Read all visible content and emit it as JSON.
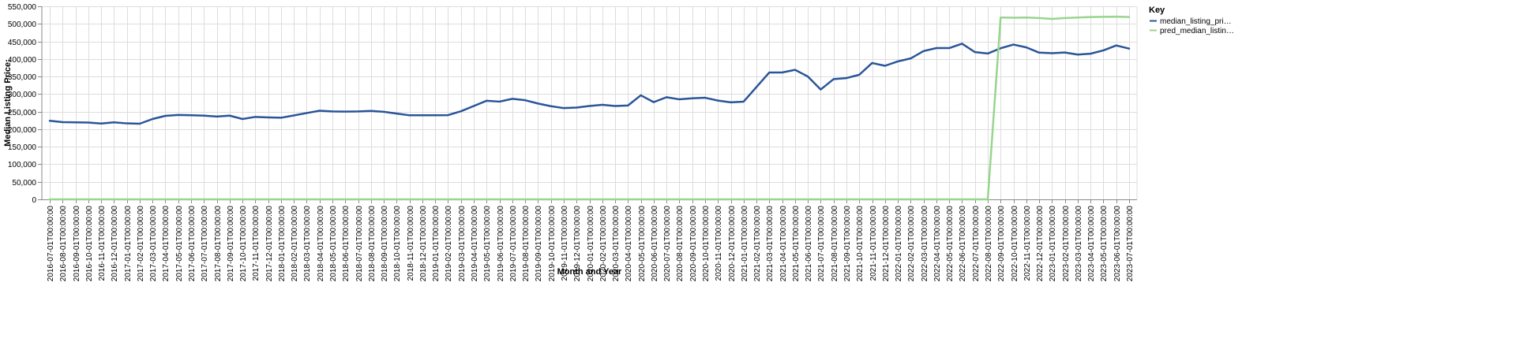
{
  "chart_data": {
    "type": "line",
    "xlabel": "Month and Year",
    "ylabel": "Median Listing Price:",
    "ylim": [
      0,
      550000
    ],
    "yticks": [
      "0",
      "50,000",
      "100,000",
      "150,000",
      "200,000",
      "250,000",
      "300,000",
      "350,000",
      "400,000",
      "450,000",
      "500,000",
      "550,000"
    ],
    "grid": true,
    "legend": {
      "title": "Key",
      "position": "right",
      "entries": [
        "median_listing_pri…",
        "pred_median_listin…"
      ]
    },
    "x": [
      "2016-07-01T00:00:00",
      "2016-08-01T00:00:00",
      "2016-09-01T00:00:00",
      "2016-10-01T00:00:00",
      "2016-11-01T00:00:00",
      "2016-12-01T00:00:00",
      "2017-01-01T00:00:00",
      "2017-02-01T00:00:00",
      "2017-03-01T00:00:00",
      "2017-04-01T00:00:00",
      "2017-05-01T00:00:00",
      "2017-06-01T00:00:00",
      "2017-07-01T00:00:00",
      "2017-08-01T00:00:00",
      "2017-09-01T00:00:00",
      "2017-10-01T00:00:00",
      "2017-11-01T00:00:00",
      "2017-12-01T00:00:00",
      "2018-01-01T00:00:00",
      "2018-02-01T00:00:00",
      "2018-03-01T00:00:00",
      "2018-04-01T00:00:00",
      "2018-05-01T00:00:00",
      "2018-06-01T00:00:00",
      "2018-07-01T00:00:00",
      "2018-08-01T00:00:00",
      "2018-09-01T00:00:00",
      "2018-10-01T00:00:00",
      "2018-11-01T00:00:00",
      "2018-12-01T00:00:00",
      "2019-01-01T00:00:00",
      "2019-02-01T00:00:00",
      "2019-03-01T00:00:00",
      "2019-04-01T00:00:00",
      "2019-05-01T00:00:00",
      "2019-06-01T00:00:00",
      "2019-07-01T00:00:00",
      "2019-08-01T00:00:00",
      "2019-09-01T00:00:00",
      "2019-10-01T00:00:00",
      "2019-11-01T00:00:00",
      "2019-12-01T00:00:00",
      "2020-01-01T00:00:00",
      "2020-02-01T00:00:00",
      "2020-03-01T00:00:00",
      "2020-04-01T00:00:00",
      "2020-05-01T00:00:00",
      "2020-06-01T00:00:00",
      "2020-07-01T00:00:00",
      "2020-08-01T00:00:00",
      "2020-09-01T00:00:00",
      "2020-10-01T00:00:00",
      "2020-11-01T00:00:00",
      "2020-12-01T00:00:00",
      "2021-01-01T00:00:00",
      "2021-02-01T00:00:00",
      "2021-03-01T00:00:00",
      "2021-04-01T00:00:00",
      "2021-05-01T00:00:00",
      "2021-06-01T00:00:00",
      "2021-07-01T00:00:00",
      "2021-08-01T00:00:00",
      "2021-09-01T00:00:00",
      "2021-10-01T00:00:00",
      "2021-11-01T00:00:00",
      "2021-12-01T00:00:00",
      "2022-01-01T00:00:00",
      "2022-02-01T00:00:00",
      "2022-03-01T00:00:00",
      "2022-04-01T00:00:00",
      "2022-05-01T00:00:00",
      "2022-06-01T00:00:00",
      "2022-07-01T00:00:00",
      "2022-08-01T00:00:00",
      "2022-09-01T00:00:00",
      "2022-10-01T00:00:00",
      "2022-11-01T00:00:00",
      "2022-12-01T00:00:00",
      "2023-01-01T00:00:00",
      "2023-02-01T00:00:00",
      "2023-03-01T00:00:00",
      "2023-04-01T00:00:00",
      "2023-05-01T00:00:00",
      "2023-06-01T00:00:00",
      "2023-07-01T00:00:00"
    ],
    "series": [
      {
        "name": "median_listing_pri…",
        "color": "#2a5599",
        "values": [
          224000,
          220000,
          219500,
          219000,
          216000,
          219500,
          216500,
          215500,
          229000,
          238000,
          240500,
          239500,
          238500,
          236000,
          238500,
          229000,
          235000,
          233500,
          232500,
          239000,
          246000,
          252500,
          250500,
          250000,
          250500,
          252000,
          249500,
          244500,
          239500,
          239500,
          239500,
          240000,
          251000,
          266000,
          281000,
          278500,
          286500,
          282500,
          273000,
          265500,
          260000,
          261500,
          266000,
          269500,
          266000,
          267500,
          296500,
          277000,
          291000,
          285000,
          288000,
          289500,
          281500,
          276500,
          278500,
          320000,
          361500,
          361500,
          369000,
          350000,
          313000,
          342500,
          345500,
          355000,
          388500,
          380500,
          393000,
          401500,
          422500,
          431000,
          431000,
          443500,
          419500,
          415500,
          430500,
          441000,
          433000,
          418000,
          416500,
          418500,
          412500,
          415000,
          424500,
          438500,
          429500
        ]
      },
      {
        "name": "pred_median_listin…",
        "color": "#98d58e",
        "values": [
          0,
          0,
          0,
          0,
          0,
          0,
          0,
          0,
          0,
          0,
          0,
          0,
          0,
          0,
          0,
          0,
          0,
          0,
          0,
          0,
          0,
          0,
          0,
          0,
          0,
          0,
          0,
          0,
          0,
          0,
          0,
          0,
          0,
          0,
          0,
          0,
          0,
          0,
          0,
          0,
          0,
          0,
          0,
          0,
          0,
          0,
          0,
          0,
          0,
          0,
          0,
          0,
          0,
          0,
          0,
          0,
          0,
          0,
          0,
          0,
          0,
          0,
          0,
          0,
          0,
          0,
          0,
          0,
          0,
          0,
          0,
          0,
          0,
          0,
          518000,
          517500,
          518000,
          516500,
          514000,
          516500,
          518000,
          519500,
          520000,
          520500,
          519500
        ]
      }
    ]
  }
}
